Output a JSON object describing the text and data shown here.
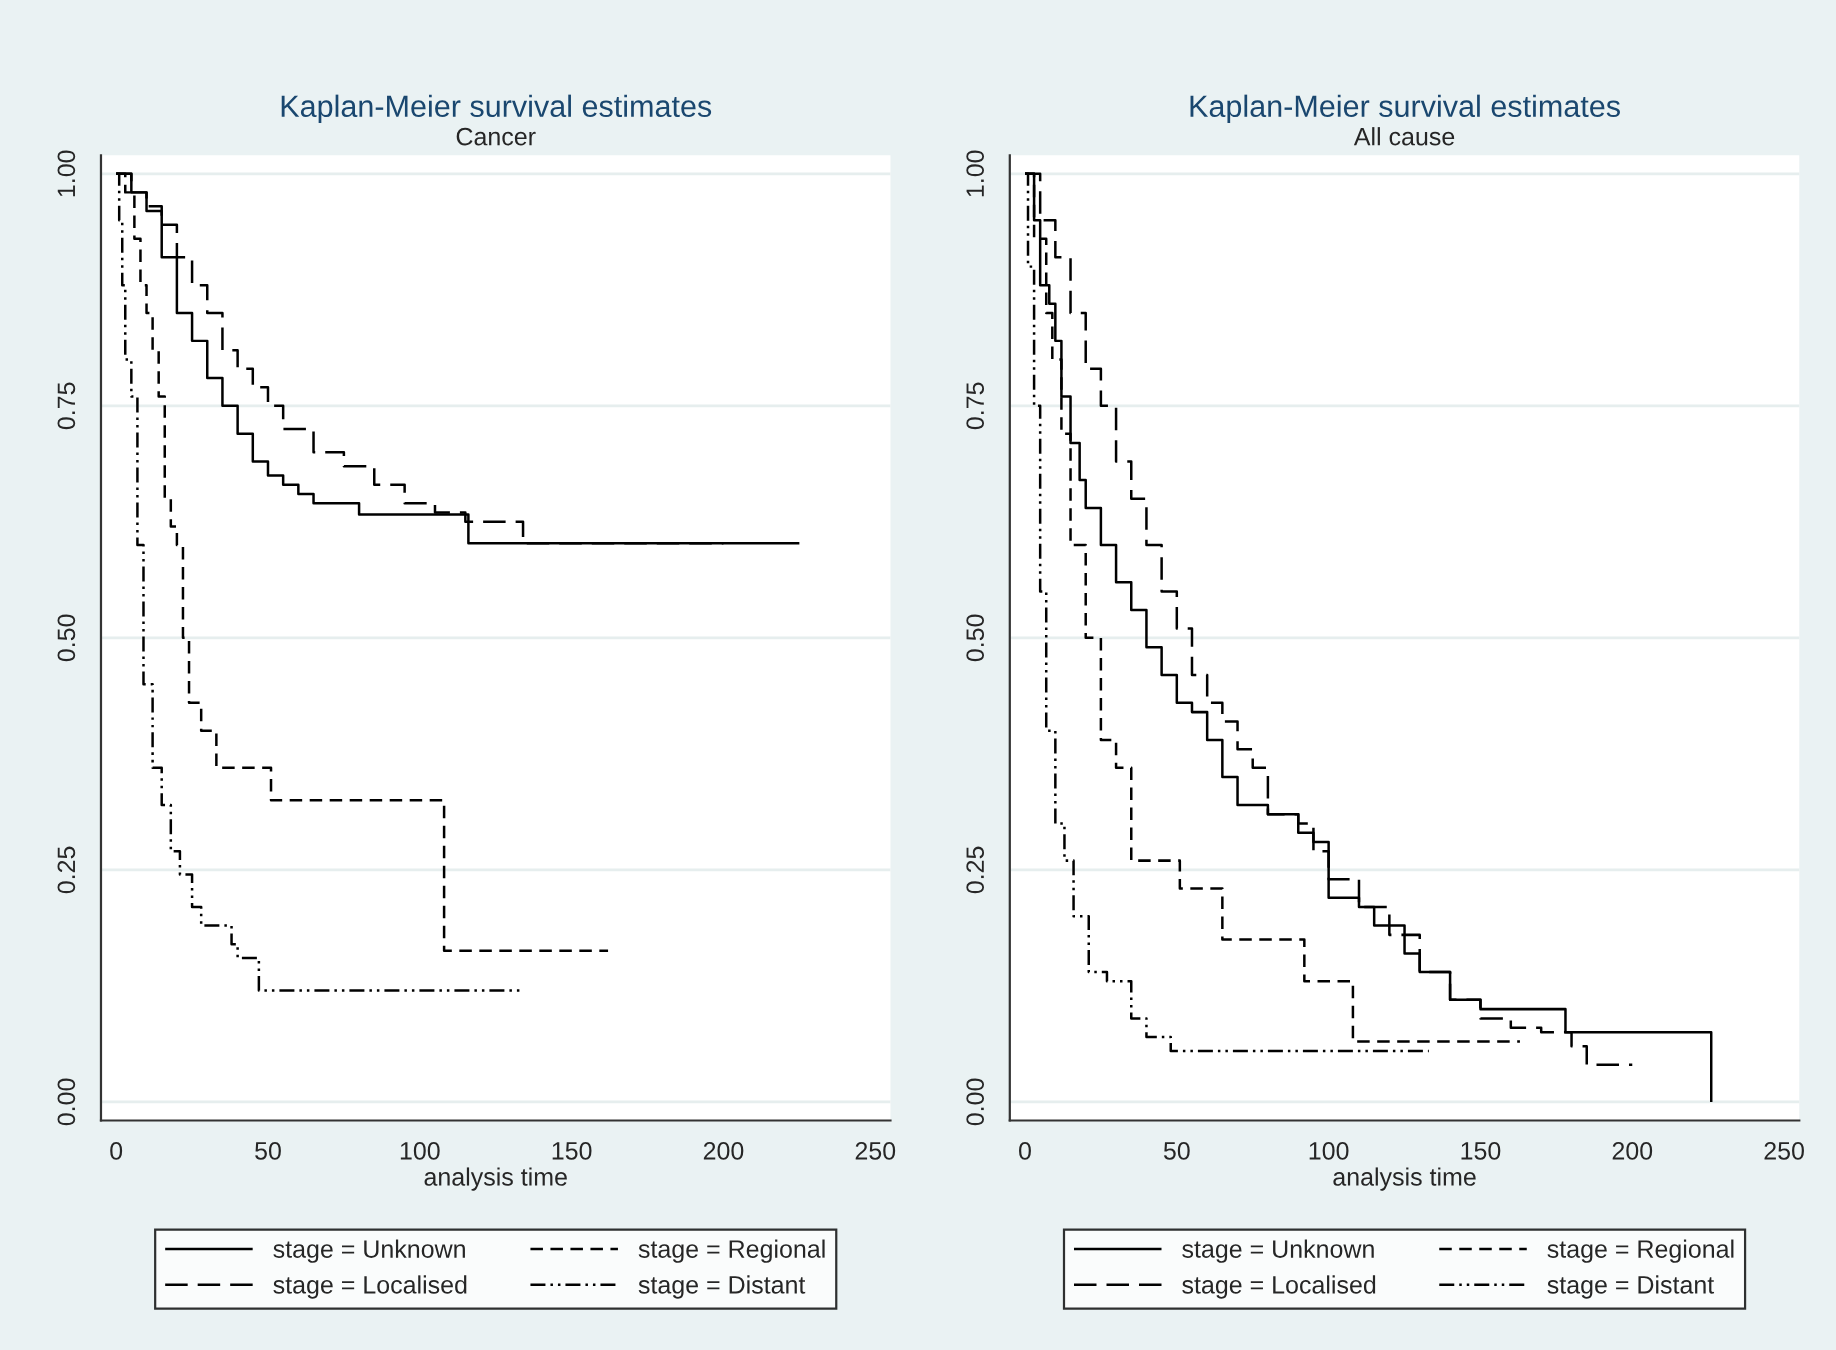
{
  "chart_data": [
    {
      "type": "step",
      "title": "Kaplan-Meier survival estimates",
      "subtitle": "Cancer",
      "xlabel": "analysis time",
      "xlim": [
        -5,
        255
      ],
      "xticks": [
        0,
        50,
        100,
        150,
        200,
        250
      ],
      "ylim": [
        -0.02,
        1.02
      ],
      "yticks": [
        {
          "value": 0,
          "label": "0.00"
        },
        {
          "value": 0.25,
          "label": "0.25"
        },
        {
          "value": 0.5,
          "label": "0.50"
        },
        {
          "value": 0.75,
          "label": "0.75"
        },
        {
          "value": 1,
          "label": "1.00"
        }
      ],
      "grid": "y",
      "legend": "bottom",
      "series": [
        {
          "name": "stage = Unknown",
          "color": "#000000",
          "line_style": "solid",
          "x": [
            0,
            5,
            10,
            15,
            20,
            25,
            30,
            35,
            40,
            45,
            50,
            55,
            60,
            65,
            80,
            116,
            225
          ],
          "values": [
            1,
            0.98,
            0.96,
            0.91,
            0.85,
            0.82,
            0.78,
            0.75,
            0.72,
            0.69,
            0.675,
            0.665,
            0.655,
            0.645,
            0.633,
            0.602,
            0.602
          ]
        },
        {
          "name": "stage = Localised",
          "color": "#000000",
          "line_style": "longdash",
          "x": [
            0,
            5,
            10,
            15,
            20,
            25,
            30,
            35,
            40,
            45,
            50,
            55,
            65,
            75,
            85,
            95,
            105,
            115,
            134,
            200
          ],
          "values": [
            1,
            0.98,
            0.965,
            0.945,
            0.91,
            0.88,
            0.85,
            0.81,
            0.79,
            0.77,
            0.75,
            0.725,
            0.7,
            0.685,
            0.665,
            0.645,
            0.635,
            0.625,
            0.602,
            0.602
          ]
        },
        {
          "name": "stage = Regional",
          "color": "#000000",
          "line_style": "dashed",
          "x": [
            0,
            3,
            6,
            8,
            10,
            12,
            14,
            16,
            18,
            20,
            22,
            24,
            28,
            33,
            51,
            108,
            162
          ],
          "values": [
            1,
            0.98,
            0.93,
            0.88,
            0.85,
            0.81,
            0.76,
            0.65,
            0.62,
            0.6,
            0.5,
            0.43,
            0.4,
            0.36,
            0.325,
            0.163,
            0.163
          ]
        },
        {
          "name": "stage = Distant",
          "color": "#000000",
          "line_style": "dashdotdot",
          "x": [
            0,
            1,
            2,
            3,
            5,
            7,
            9,
            12,
            15,
            18,
            21,
            25,
            28,
            38,
            40,
            47,
            133
          ],
          "values": [
            1,
            0.95,
            0.88,
            0.8,
            0.76,
            0.6,
            0.45,
            0.36,
            0.32,
            0.27,
            0.245,
            0.21,
            0.19,
            0.17,
            0.155,
            0.12,
            0.12
          ]
        }
      ]
    },
    {
      "type": "step",
      "title": "Kaplan-Meier survival estimates",
      "subtitle": "All cause",
      "xlabel": "analysis time",
      "xlim": [
        -5,
        255
      ],
      "xticks": [
        0,
        50,
        100,
        150,
        200,
        250
      ],
      "ylim": [
        -0.02,
        1.02
      ],
      "yticks": [
        {
          "value": 0,
          "label": "0.00"
        },
        {
          "value": 0.25,
          "label": "0.25"
        },
        {
          "value": 0.5,
          "label": "0.50"
        },
        {
          "value": 0.75,
          "label": "0.75"
        },
        {
          "value": 1,
          "label": "1.00"
        }
      ],
      "grid": "y",
      "legend": "bottom",
      "series": [
        {
          "name": "stage = Unknown",
          "color": "#000000",
          "line_style": "solid",
          "x": [
            0,
            3,
            5,
            8,
            10,
            12,
            15,
            18,
            20,
            25,
            30,
            35,
            40,
            45,
            50,
            55,
            60,
            65,
            70,
            80,
            90,
            95,
            100,
            110,
            115,
            125,
            130,
            140,
            150,
            178,
            226
          ],
          "values": [
            1,
            0.95,
            0.88,
            0.86,
            0.82,
            0.76,
            0.71,
            0.67,
            0.64,
            0.6,
            0.56,
            0.53,
            0.49,
            0.46,
            0.43,
            0.42,
            0.39,
            0.35,
            0.32,
            0.31,
            0.29,
            0.28,
            0.22,
            0.21,
            0.19,
            0.16,
            0.14,
            0.11,
            0.1,
            0.075,
            0
          ]
        },
        {
          "name": "stage = Localised",
          "color": "#000000",
          "line_style": "longdash",
          "x": [
            0,
            5,
            10,
            15,
            20,
            25,
            30,
            35,
            40,
            45,
            50,
            55,
            60,
            65,
            70,
            75,
            80,
            90,
            95,
            100,
            110,
            120,
            130,
            140,
            150,
            160,
            170,
            180,
            185,
            200
          ],
          "values": [
            1,
            0.95,
            0.91,
            0.85,
            0.79,
            0.75,
            0.69,
            0.65,
            0.6,
            0.55,
            0.51,
            0.46,
            0.43,
            0.41,
            0.38,
            0.36,
            0.31,
            0.3,
            0.27,
            0.24,
            0.21,
            0.18,
            0.14,
            0.11,
            0.09,
            0.08,
            0.075,
            0.06,
            0.04,
            0.04
          ]
        },
        {
          "name": "stage = Regional",
          "color": "#000000",
          "line_style": "dashed",
          "x": [
            0,
            3,
            7,
            9,
            12,
            15,
            20,
            25,
            30,
            35,
            51,
            65,
            92,
            108,
            163
          ],
          "values": [
            1,
            0.93,
            0.85,
            0.8,
            0.72,
            0.6,
            0.5,
            0.39,
            0.36,
            0.26,
            0.23,
            0.175,
            0.13,
            0.065,
            0.065
          ]
        },
        {
          "name": "stage = Distant",
          "color": "#000000",
          "line_style": "dashdotdot",
          "x": [
            0,
            1,
            3,
            5,
            7,
            10,
            13,
            16,
            21,
            27,
            35,
            40,
            48,
            133
          ],
          "values": [
            1,
            0.9,
            0.75,
            0.55,
            0.4,
            0.3,
            0.26,
            0.2,
            0.14,
            0.13,
            0.09,
            0.07,
            0.055,
            0.055
          ]
        }
      ]
    }
  ]
}
